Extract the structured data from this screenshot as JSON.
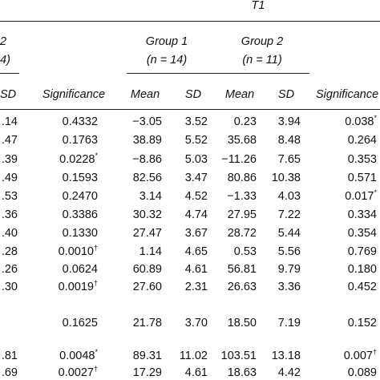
{
  "header": {
    "top": {
      "label": "T1"
    },
    "left_partial": [
      "2",
      "4)"
    ],
    "groups": [
      {
        "name": "Group 1",
        "n": "(n  = 14)"
      },
      {
        "name": "Group 2",
        "n": "(n  = 11)"
      }
    ],
    "columns": {
      "sd_prev": "SD",
      "significance_prev": "Significance",
      "mean1": "Mean",
      "sd1": "SD",
      "mean2": "Mean",
      "sd2": "SD",
      "significance": "Significance"
    }
  },
  "rows": [
    {
      "sd_prev": ".14",
      "sig_prev": "0.4332",
      "sig_prev_mark": "",
      "mean1": "−3.05",
      "sd1": "3.52",
      "mean2": "0.23",
      "sd2": "3.94",
      "sig": "0.038",
      "sig_mark": "*"
    },
    {
      "sd_prev": ".47",
      "sig_prev": "0.1763",
      "sig_prev_mark": "",
      "mean1": "38.89",
      "sd1": "5.52",
      "mean2": "35.68",
      "sd2": "8.48",
      "sig": "0.264",
      "sig_mark": ""
    },
    {
      "sd_prev": ".39",
      "sig_prev": "0.0228",
      "sig_prev_mark": "*",
      "mean1": "−8.86",
      "sd1": "5.03",
      "mean2": "−11.26",
      "sd2": "7.65",
      "sig": "0.353",
      "sig_mark": ""
    },
    {
      "sd_prev": ".49",
      "sig_prev": "0.1593",
      "sig_prev_mark": "",
      "mean1": "82.56",
      "sd1": "3.47",
      "mean2": "80.86",
      "sd2": "10.38",
      "sig": "0.571",
      "sig_mark": ""
    },
    {
      "sd_prev": ".53",
      "sig_prev": "0.2470",
      "sig_prev_mark": "",
      "mean1": "3.14",
      "sd1": "4.52",
      "mean2": "−1.33",
      "sd2": "4.03",
      "sig": "0.017",
      "sig_mark": "*"
    },
    {
      "sd_prev": ".36",
      "sig_prev": "0.3386",
      "sig_prev_mark": "",
      "mean1": "30.32",
      "sd1": "4.74",
      "mean2": "27.95",
      "sd2": "7.22",
      "sig": "0.334",
      "sig_mark": ""
    },
    {
      "sd_prev": ".40",
      "sig_prev": "0.1330",
      "sig_prev_mark": "",
      "mean1": "27.47",
      "sd1": "3.67",
      "mean2": "28.72",
      "sd2": "5.44",
      "sig": "0.354",
      "sig_mark": ""
    },
    {
      "sd_prev": ".28",
      "sig_prev": "0.0010",
      "sig_prev_mark": "†",
      "mean1": "1.14",
      "sd1": "4.65",
      "mean2": "0.53",
      "sd2": "5.56",
      "sig": "0.769",
      "sig_mark": ""
    },
    {
      "sd_prev": ".26",
      "sig_prev": "0.0624",
      "sig_prev_mark": "",
      "mean1": "60.89",
      "sd1": "4.61",
      "mean2": "56.81",
      "sd2": "9.79",
      "sig": "0.180",
      "sig_mark": ""
    },
    {
      "sd_prev": ".30",
      "sig_prev": "0.0019",
      "sig_prev_mark": "†",
      "mean1": "27.60",
      "sd1": "2.31",
      "mean2": "26.63",
      "sd2": "3.36",
      "sig": "0.452",
      "sig_mark": ""
    },
    {
      "sd_prev": "",
      "sig_prev": "0.1625",
      "sig_prev_mark": "",
      "mean1": "21.78",
      "sd1": "3.70",
      "mean2": "18.50",
      "sd2": "7.19",
      "sig": "0.152",
      "sig_mark": ""
    },
    {
      "sd_prev": ".81",
      "sig_prev": "0.0048",
      "sig_prev_mark": "*",
      "mean1": "89.31",
      "sd1": "11.02",
      "mean2": "103.51",
      "sd2": "13.18",
      "sig": "0.007",
      "sig_mark": "†"
    },
    {
      "sd_prev": ".69",
      "sig_prev": "0.0027",
      "sig_prev_mark": "†",
      "mean1": "17.29",
      "sd1": "4.61",
      "mean2": "18.63",
      "sd2": "4.42",
      "sig": "0.089",
      "sig_mark": ""
    }
  ]
}
